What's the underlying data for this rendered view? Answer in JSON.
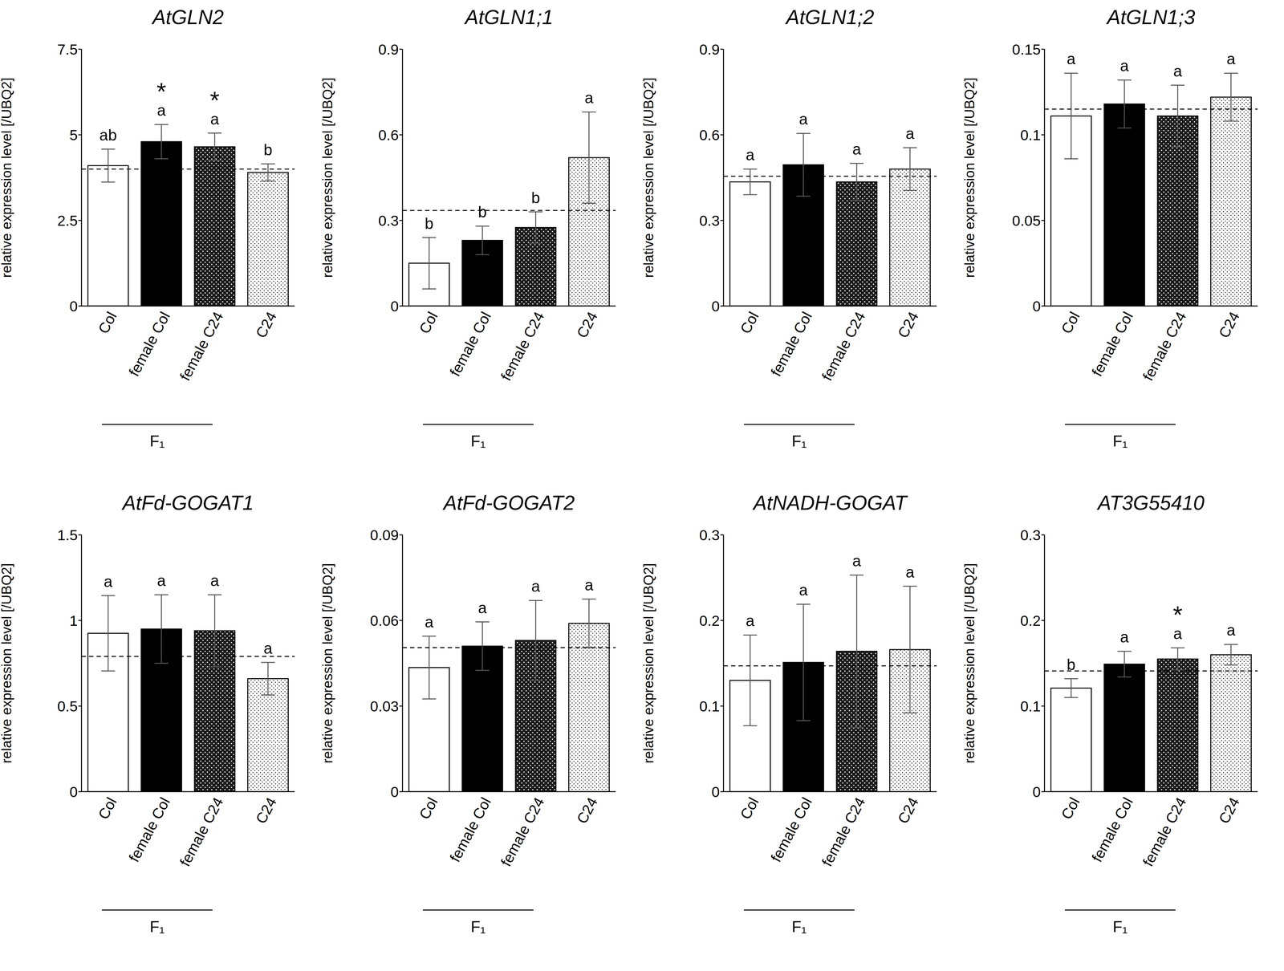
{
  "chart_data": [
    {
      "type": "bar",
      "title": "AtGLN2",
      "y_label": "relative expression level [/UBQ2]",
      "categories": [
        "Col",
        "female Col",
        "female C24",
        "C24"
      ],
      "values": [
        4.1,
        4.8,
        4.65,
        3.9
      ],
      "errors": [
        0.48,
        0.5,
        0.4,
        0.25
      ],
      "colors": [
        "#ffffff",
        "#000000",
        "#1a1a1a",
        "#ffffff"
      ],
      "ylim": [
        0,
        7.5
      ],
      "yticks": [
        0,
        2.5,
        5,
        7.5
      ],
      "letters": [
        "ab",
        "a",
        "a",
        "b"
      ],
      "marks": [
        null,
        "*",
        "*",
        null
      ],
      "reference_line": 4.0,
      "group_label": "F₁"
    },
    {
      "type": "bar",
      "title": "AtGLN1;1",
      "y_label": "relative expression level [/UBQ2]",
      "categories": [
        "Col",
        "female Col",
        "female C24",
        "C24"
      ],
      "values": [
        0.15,
        0.23,
        0.275,
        0.52
      ],
      "errors": [
        0.09,
        0.05,
        0.055,
        0.16
      ],
      "colors": [
        "#ffffff",
        "#000000",
        "#1a1a1a",
        "#ffffff"
      ],
      "ylim": [
        0,
        0.9
      ],
      "yticks": [
        0,
        0.3,
        0.6,
        0.9
      ],
      "letters": [
        "b",
        "b",
        "b",
        "a"
      ],
      "marks": [
        null,
        null,
        null,
        null
      ],
      "reference_line": 0.335,
      "group_label": "F₁"
    },
    {
      "type": "bar",
      "title": "AtGLN1;2",
      "y_label": "relative expression level [/UBQ2]",
      "categories": [
        "Col",
        "female Col",
        "female C24",
        "C24"
      ],
      "values": [
        0.435,
        0.495,
        0.435,
        0.48
      ],
      "errors": [
        0.045,
        0.11,
        0.065,
        0.075
      ],
      "colors": [
        "#ffffff",
        "#000000",
        "#1a1a1a",
        "#ffffff"
      ],
      "ylim": [
        0,
        0.9
      ],
      "yticks": [
        0,
        0.3,
        0.6,
        0.9
      ],
      "letters": [
        "a",
        "a",
        "a",
        "a"
      ],
      "marks": [
        null,
        null,
        null,
        null
      ],
      "reference_line": 0.455,
      "group_label": "F₁"
    },
    {
      "type": "bar",
      "title": "AtGLN1;3",
      "y_label": "relative expression level [/UBQ2]",
      "categories": [
        "Col",
        "female Col",
        "female C24",
        "C24"
      ],
      "values": [
        0.111,
        0.118,
        0.111,
        0.122
      ],
      "errors": [
        0.025,
        0.014,
        0.018,
        0.014
      ],
      "colors": [
        "#ffffff",
        "#000000",
        "#1a1a1a",
        "#ffffff"
      ],
      "ylim": [
        0,
        0.15
      ],
      "yticks": [
        0,
        0.05,
        0.1,
        0.15
      ],
      "letters": [
        "a",
        "a",
        "a",
        "a"
      ],
      "marks": [
        null,
        null,
        null,
        null
      ],
      "reference_line": 0.115,
      "group_label": "F₁"
    },
    {
      "type": "bar",
      "title": "AtFd-GOGAT1",
      "y_label": "relative expression level [/UBQ2]",
      "categories": [
        "Col",
        "female Col",
        "female C24",
        "C24"
      ],
      "values": [
        0.925,
        0.95,
        0.94,
        0.66
      ],
      "errors": [
        0.22,
        0.2,
        0.21,
        0.095
      ],
      "colors": [
        "#ffffff",
        "#000000",
        "#1a1a1a",
        "#ffffff"
      ],
      "ylim": [
        0,
        1.5
      ],
      "yticks": [
        0,
        0.5,
        1,
        1.5
      ],
      "letters": [
        "a",
        "a",
        "a",
        "a"
      ],
      "marks": [
        null,
        null,
        null,
        null
      ],
      "reference_line": 0.79,
      "group_label": "F₁"
    },
    {
      "type": "bar",
      "title": "AtFd-GOGAT2",
      "y_label": "relative expression level [/UBQ2]",
      "categories": [
        "Col",
        "female Col",
        "female C24",
        "C24"
      ],
      "values": [
        0.0435,
        0.051,
        0.053,
        0.059
      ],
      "errors": [
        0.011,
        0.0085,
        0.014,
        0.0085
      ],
      "colors": [
        "#ffffff",
        "#000000",
        "#1a1a1a",
        "#ffffff"
      ],
      "ylim": [
        0,
        0.09
      ],
      "yticks": [
        0,
        0.03,
        0.06,
        0.09
      ],
      "letters": [
        "a",
        "a",
        "a",
        "a"
      ],
      "marks": [
        null,
        null,
        null,
        null
      ],
      "reference_line": 0.0505,
      "group_label": "F₁"
    },
    {
      "type": "bar",
      "title": "AtNADH-GOGAT",
      "y_label": "relative expression level [/UBQ2]",
      "categories": [
        "Col",
        "female Col",
        "female C24",
        "C24"
      ],
      "values": [
        0.13,
        0.151,
        0.164,
        0.166
      ],
      "errors": [
        0.053,
        0.068,
        0.089,
        0.074
      ],
      "colors": [
        "#ffffff",
        "#000000",
        "#1a1a1a",
        "#ffffff"
      ],
      "ylim": [
        0,
        0.3
      ],
      "yticks": [
        0,
        0.1,
        0.2,
        0.3
      ],
      "letters": [
        "a",
        "a",
        "a",
        "a"
      ],
      "marks": [
        null,
        null,
        null,
        null
      ],
      "reference_line": 0.147,
      "group_label": "F₁"
    },
    {
      "type": "bar",
      "title": "AT3G55410",
      "y_label": "relative expression level [/UBQ2]",
      "categories": [
        "Col",
        "female Col",
        "female C24",
        "C24"
      ],
      "values": [
        0.121,
        0.149,
        0.155,
        0.16
      ],
      "errors": [
        0.011,
        0.015,
        0.013,
        0.012
      ],
      "colors": [
        "#ffffff",
        "#000000",
        "#1a1a1a",
        "#ffffff"
      ],
      "ylim": [
        0,
        0.3
      ],
      "yticks": [
        0,
        0.1,
        0.2,
        0.3
      ],
      "letters": [
        "b",
        "a",
        "a",
        "a"
      ],
      "marks": [
        null,
        null,
        "*",
        null
      ],
      "reference_line": 0.141,
      "group_label": "F₁"
    }
  ]
}
